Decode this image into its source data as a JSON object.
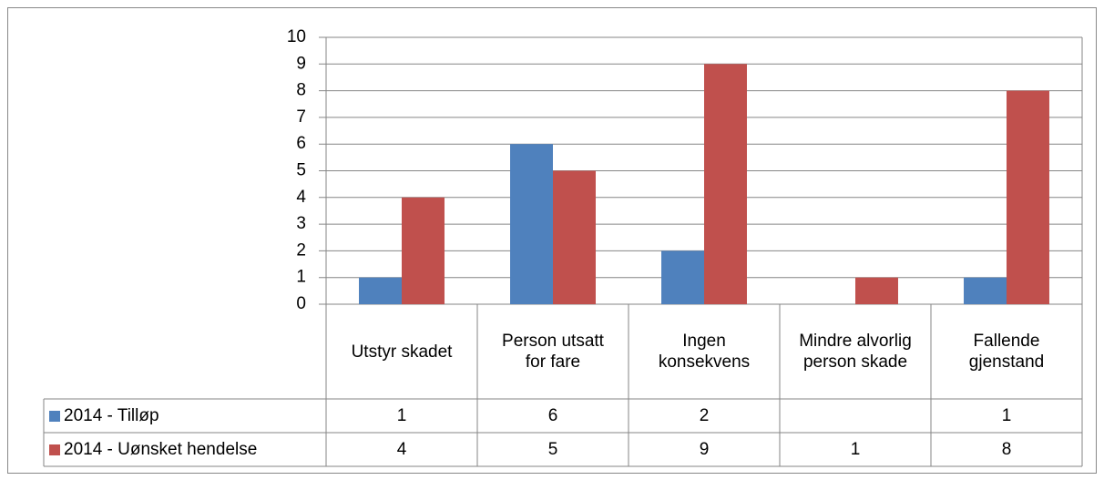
{
  "chart_data": {
    "type": "bar",
    "categories": [
      "Utstyr skadet",
      "Person utsatt for fare",
      "Ingen konsekvens",
      "Mindre alvorlig person skade",
      "Fallende gjenstand"
    ],
    "series": [
      {
        "name": "2014 - Tilløp",
        "color": "#4f81bd",
        "values": [
          1,
          6,
          2,
          null,
          1
        ]
      },
      {
        "name": "2014 - Uønsket hendelse",
        "color": "#c0504d",
        "values": [
          4,
          5,
          9,
          1,
          8
        ]
      }
    ],
    "ylim": [
      0,
      10
    ],
    "yticks": [
      0,
      1,
      2,
      3,
      4,
      5,
      6,
      7,
      8,
      9,
      10
    ],
    "grid": true
  }
}
